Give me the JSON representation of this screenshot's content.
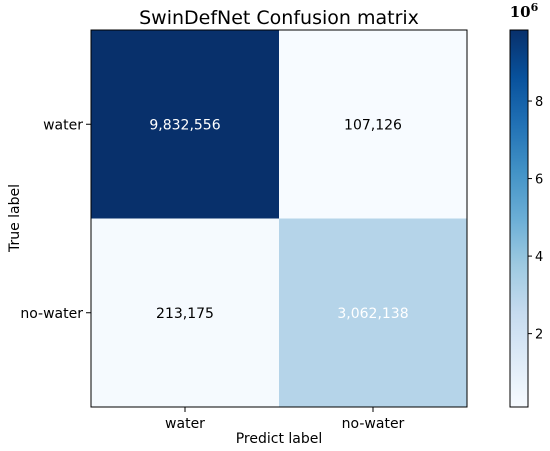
{
  "chart_data": {
    "type": "heatmap",
    "title": "SwinDefNet Confusion matrix",
    "xlabel": "Predict label",
    "ylabel": "True label",
    "x_categories": [
      "water",
      "no-water"
    ],
    "y_categories": [
      "water",
      "no-water"
    ],
    "matrix": [
      [
        9832556,
        107126
      ],
      [
        213175,
        3062138
      ]
    ],
    "cell_labels": [
      [
        "9,832,556",
        "107,126"
      ],
      [
        "213,175",
        "3,062,138"
      ]
    ],
    "colormap": "Blues",
    "colormap_stops": [
      "#f7fbff",
      "#deebf7",
      "#c6dbef",
      "#9ecae1",
      "#6baed6",
      "#4292c6",
      "#2171b5",
      "#08519c",
      "#08306b"
    ],
    "colorbar": {
      "range": [
        107126,
        9832556
      ],
      "ticks": [
        2,
        4,
        6,
        8
      ],
      "tick_labels": [
        "2",
        "4",
        "6",
        "8"
      ],
      "multiplier_label": "10",
      "multiplier_exponent": "6",
      "tick_scale": 1000000
    },
    "text_color_threshold": 2500000,
    "text_colors": {
      "light": "#ffffff",
      "dark": "#000000"
    },
    "grid": false
  }
}
